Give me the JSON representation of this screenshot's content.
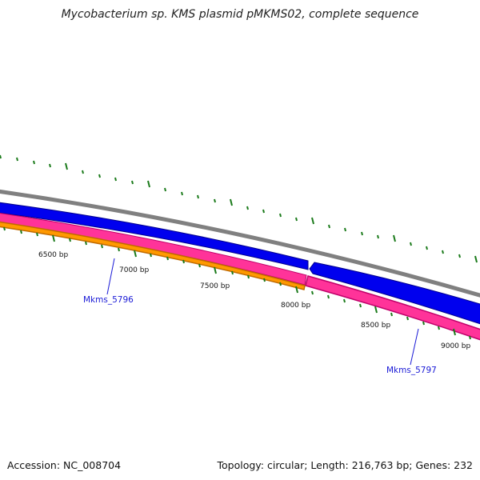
{
  "title": "Mycobacterium sp. KMS plasmid pMKMS02, complete sequence",
  "footer": {
    "accession": "Accession: NC_008704",
    "summary": "Topology: circular; Length: 216,763 bp; Genes: 232"
  },
  "scale": {
    "labels": [
      "6500 bp",
      "7000 bp",
      "7500 bp",
      "8000 bp",
      "8500 bp",
      "9000 bp"
    ]
  },
  "genes": [
    {
      "name": "Mkms_5796"
    },
    {
      "name": "Mkms_5797"
    }
  ],
  "colors": {
    "backbone": "#808080",
    "forward_cds": "#0000ee",
    "reverse_cds": "#ff3399",
    "reverse_cds_edge": "#c0006a",
    "lower_track": "#ff9900",
    "lower_track_edge": "#c06a00",
    "ticks": "#1a7a1a",
    "gene_label": "#1a1ad6"
  }
}
